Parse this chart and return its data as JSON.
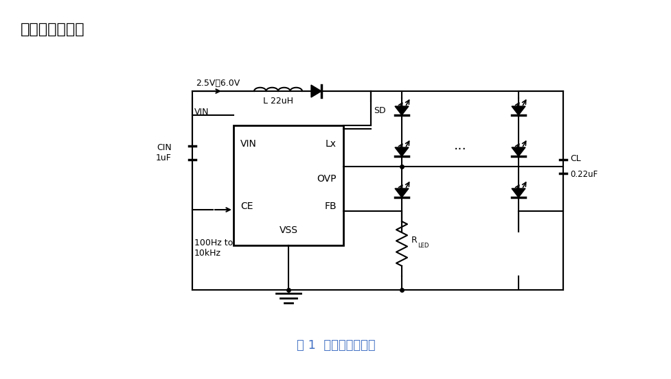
{
  "title": "典型应用电路图",
  "caption": "图 1  典型应用电路图",
  "bg_color": "#ffffff",
  "title_color": "#000000",
  "caption_color": "#4472c4",
  "voltage_label": "2.5V～6.0V",
  "inductor_label": "L 22uH",
  "sd_label": "SD",
  "vin_label": "VIN",
  "cin_label": "CIN\n1uF",
  "cl_label": "CL\n0.22uF",
  "rled_label": "R",
  "rled_sub": "LED",
  "freq_label": "100Hz to\n10kHz",
  "ic_pins": [
    "VIN",
    "Lx",
    "OVP",
    "CE",
    "FB",
    "VSS"
  ]
}
